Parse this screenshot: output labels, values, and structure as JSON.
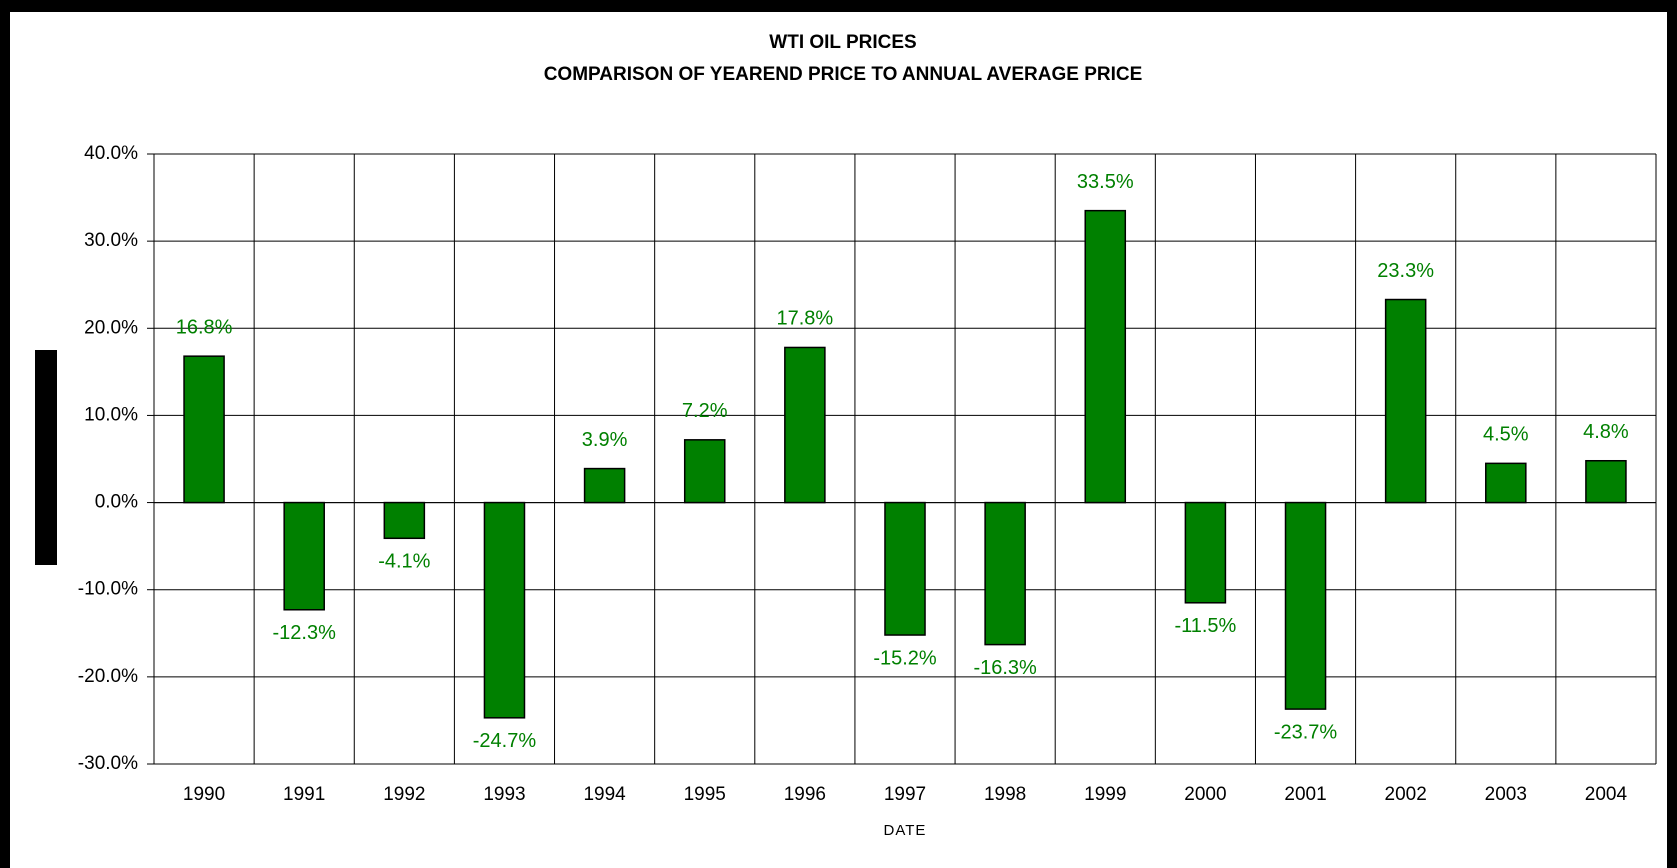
{
  "chart_data": {
    "type": "bar",
    "title": "WTI OIL PRICES",
    "subtitle": "COMPARISON OF YEAREND PRICE TO ANNUAL AVERAGE PRICE",
    "x_label": "DATE",
    "categories": [
      "1990",
      "1991",
      "1992",
      "1993",
      "1994",
      "1995",
      "1996",
      "1997",
      "1998",
      "1999",
      "2000",
      "2001",
      "2002",
      "2003",
      "2004"
    ],
    "values": [
      16.8,
      -12.3,
      -4.1,
      -24.7,
      3.9,
      7.2,
      17.8,
      -15.2,
      -16.3,
      33.5,
      -11.5,
      -23.7,
      23.3,
      4.5,
      4.8
    ],
    "value_labels": [
      "16.8%",
      "-12.3%",
      "-4.1%",
      "-24.7%",
      "3.9%",
      "7.2%",
      "17.8%",
      "-15.2%",
      "-16.3%",
      "33.5%",
      "-11.5%",
      "-23.7%",
      "23.3%",
      "4.5%",
      "4.8%"
    ],
    "color": "#008000",
    "label_color": "#008000",
    "ylim": [
      -30,
      40
    ],
    "yticks": [
      {
        "value": -30,
        "label": "-30.0%"
      },
      {
        "value": -20,
        "label": "-20.0%"
      },
      {
        "value": -10,
        "label": "-10.0%"
      },
      {
        "value": 0,
        "label": "0.0%"
      },
      {
        "value": 10,
        "label": "10.0%"
      },
      {
        "value": 20,
        "label": "20.0%"
      },
      {
        "value": 30,
        "label": "30.0%"
      },
      {
        "value": 40,
        "label": "40.0%"
      }
    ],
    "grid": true
  }
}
